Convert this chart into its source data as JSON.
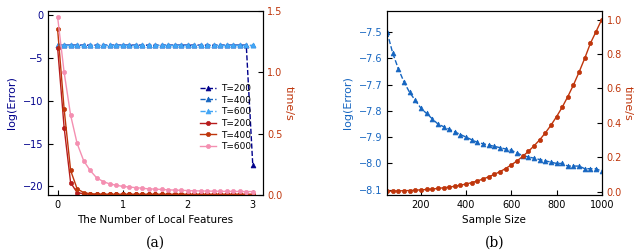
{
  "fig_width": 6.4,
  "fig_height": 2.5,
  "dpi": 100,
  "background": "#ffffff",
  "subplot_a": {
    "xlabel": "The Number of Local Features",
    "ylabel_left": "log(Error)",
    "ylabel_right": "time/s",
    "xlim": [
      -0.15,
      3.15
    ],
    "ylim_left": [
      -21,
      0.5
    ],
    "ylim_right": [
      0,
      1.5
    ],
    "yticks_left": [
      0,
      -5,
      -10,
      -15,
      -20
    ],
    "yticks_right": [
      0,
      0.5,
      1.0,
      1.5
    ],
    "xticks": [
      0,
      1,
      2,
      3
    ],
    "label_a": "(a)",
    "blue_x": [
      0.0,
      0.1,
      0.2,
      0.3,
      0.4,
      0.5,
      0.6,
      0.7,
      0.8,
      0.9,
      1.0,
      1.1,
      1.2,
      1.3,
      1.4,
      1.5,
      1.6,
      1.7,
      1.8,
      1.9,
      2.0,
      2.1,
      2.2,
      2.3,
      2.4,
      2.5,
      2.6,
      2.7,
      2.8,
      2.9,
      3.0
    ],
    "t200_error": [
      -3.5,
      -3.5,
      -3.5,
      -3.5,
      -3.5,
      -3.5,
      -3.5,
      -3.5,
      -3.5,
      -3.5,
      -3.5,
      -3.5,
      -3.5,
      -3.5,
      -3.5,
      -3.5,
      -3.5,
      -3.5,
      -3.5,
      -3.5,
      -3.5,
      -3.5,
      -3.5,
      -3.5,
      -3.5,
      -3.5,
      -3.5,
      -3.5,
      -3.5,
      -3.5,
      -17.5
    ],
    "t400_error": [
      -3.5,
      -3.5,
      -3.5,
      -3.5,
      -3.5,
      -3.5,
      -3.5,
      -3.5,
      -3.5,
      -3.5,
      -3.5,
      -3.5,
      -3.5,
      -3.5,
      -3.5,
      -3.5,
      -3.5,
      -3.5,
      -3.5,
      -3.5,
      -3.5,
      -3.5,
      -3.5,
      -3.5,
      -3.5,
      -3.5,
      -3.5,
      -3.5,
      -3.5,
      -3.5,
      -3.5
    ],
    "t600_error": [
      -3.5,
      -3.5,
      -3.5,
      -3.5,
      -3.5,
      -3.5,
      -3.5,
      -3.5,
      -3.5,
      -3.5,
      -3.5,
      -3.5,
      -3.5,
      -3.5,
      -3.5,
      -3.5,
      -3.5,
      -3.5,
      -3.5,
      -3.5,
      -3.5,
      -3.5,
      -3.5,
      -3.5,
      -3.5,
      -3.5,
      -3.5,
      -3.5,
      -3.5,
      -3.5,
      -3.5
    ],
    "time_x": [
      0.0,
      0.1,
      0.2,
      0.3,
      0.4,
      0.5,
      0.6,
      0.7,
      0.8,
      0.9,
      1.0,
      1.1,
      1.2,
      1.3,
      1.4,
      1.5,
      1.6,
      1.7,
      1.8,
      1.9,
      2.0,
      2.1,
      2.2,
      2.3,
      2.4,
      2.5,
      2.6,
      2.7,
      2.8,
      2.9,
      3.0
    ],
    "t200_time": [
      1.2,
      0.55,
      0.1,
      0.02,
      0.01,
      0.005,
      0.005,
      0.005,
      0.005,
      0.005,
      0.005,
      0.005,
      0.005,
      0.005,
      0.005,
      0.005,
      0.005,
      0.005,
      0.005,
      0.005,
      0.005,
      0.005,
      0.005,
      0.005,
      0.005,
      0.005,
      0.005,
      0.005,
      0.005,
      0.005,
      0.005
    ],
    "t400_time": [
      1.35,
      0.7,
      0.2,
      0.05,
      0.02,
      0.01,
      0.008,
      0.006,
      0.005,
      0.005,
      0.005,
      0.005,
      0.005,
      0.005,
      0.005,
      0.005,
      0.005,
      0.005,
      0.005,
      0.005,
      0.005,
      0.005,
      0.005,
      0.005,
      0.005,
      0.005,
      0.005,
      0.005,
      0.005,
      0.005,
      0.005
    ],
    "t600_time": [
      1.45,
      1.0,
      0.65,
      0.42,
      0.28,
      0.2,
      0.14,
      0.11,
      0.09,
      0.08,
      0.07,
      0.065,
      0.06,
      0.055,
      0.05,
      0.048,
      0.045,
      0.042,
      0.04,
      0.038,
      0.036,
      0.034,
      0.033,
      0.032,
      0.031,
      0.03,
      0.03,
      0.029,
      0.029,
      0.028,
      0.028
    ],
    "color_t200_err": "#00008B",
    "color_t400_err": "#1565C0",
    "color_t600_err": "#42A5F5",
    "color_t200_time": "#B71C1C",
    "color_t400_time": "#BF360C",
    "color_t600_time": "#F48FB1",
    "legend_labels": [
      "T=200",
      "T=400",
      "T=600",
      "T=200",
      "T=400",
      "T=600"
    ]
  },
  "subplot_b": {
    "xlabel": "Sample Size",
    "ylabel_left": "log(Error)",
    "ylabel_right": "time/s",
    "xlim": [
      50,
      1000
    ],
    "ylim_left": [
      -8.12,
      -7.42
    ],
    "ylim_right": [
      -0.02,
      1.05
    ],
    "yticks_left": [
      -8.1,
      -8.0,
      -7.9,
      -7.8,
      -7.7,
      -7.6,
      -7.5
    ],
    "yticks_right": [
      0,
      0.2,
      0.4,
      0.6,
      0.8,
      1.0
    ],
    "xticks": [
      200,
      400,
      600,
      800,
      1000
    ],
    "label_b": "(b)",
    "sample_x": [
      50,
      75,
      100,
      125,
      150,
      175,
      200,
      225,
      250,
      275,
      300,
      325,
      350,
      375,
      400,
      425,
      450,
      475,
      500,
      525,
      550,
      575,
      600,
      625,
      650,
      675,
      700,
      725,
      750,
      775,
      800,
      825,
      850,
      875,
      900,
      925,
      950,
      975,
      1000
    ],
    "error_y": [
      -7.5,
      -7.58,
      -7.64,
      -7.69,
      -7.73,
      -7.76,
      -7.79,
      -7.81,
      -7.83,
      -7.85,
      -7.86,
      -7.87,
      -7.88,
      -7.89,
      -7.9,
      -7.91,
      -7.92,
      -7.925,
      -7.93,
      -7.935,
      -7.94,
      -7.945,
      -7.95,
      -7.96,
      -7.97,
      -7.975,
      -7.98,
      -7.985,
      -7.99,
      -7.995,
      -8.0,
      -8.0,
      -8.01,
      -8.01,
      -8.01,
      -8.02,
      -8.02,
      -8.02,
      -8.03
    ],
    "time_y": [
      0.002,
      0.003,
      0.004,
      0.005,
      0.006,
      0.008,
      0.01,
      0.012,
      0.015,
      0.018,
      0.022,
      0.026,
      0.031,
      0.037,
      0.044,
      0.052,
      0.062,
      0.073,
      0.086,
      0.1,
      0.116,
      0.134,
      0.155,
      0.178,
      0.204,
      0.233,
      0.265,
      0.3,
      0.34,
      0.385,
      0.435,
      0.49,
      0.552,
      0.62,
      0.695,
      0.775,
      0.862,
      0.93,
      1.0
    ],
    "color_blue": "#1565C0",
    "color_orange": "#BF360C"
  }
}
